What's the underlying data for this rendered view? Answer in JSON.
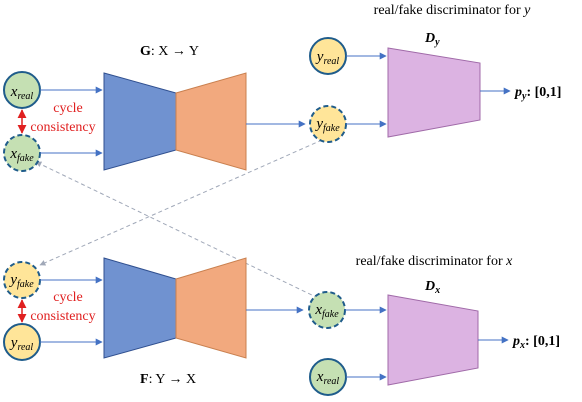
{
  "colors": {
    "encoder": "#7092d0",
    "decoder": "#f2a97e",
    "discriminator": "#dcb3e2",
    "node_green": "#c5e0b3",
    "node_yellow": "#ffe599",
    "node_stroke": "#1f5c8b",
    "arrow": "#4472c4",
    "cycle_text": "#e02020",
    "dashed_line": "#a0a8b8"
  },
  "top_generator": {
    "label_bold": "G",
    "label_rest": ": X → Y",
    "input_node": {
      "base": "x",
      "sub": "real"
    },
    "output_node": {
      "base": "y",
      "sub": "fake"
    }
  },
  "bottom_generator": {
    "label_bold": "F",
    "label_rest": ": Y → X",
    "input_node": {
      "base": "y",
      "sub": "fake"
    },
    "output_node": {
      "base": "x",
      "sub": "fake"
    }
  },
  "left_top_cycle": {
    "recon_node": {
      "base": "x",
      "sub": "fake"
    },
    "line1": "cycle",
    "line2": "consistency"
  },
  "left_bottom_cycle": {
    "real_node": {
      "base": "y",
      "sub": "real"
    },
    "line1": "cycle",
    "line2": "consistency"
  },
  "disc_y": {
    "caption_text": "real/fake discriminator for ",
    "caption_var": "y",
    "label_base": "D",
    "label_sub": "y",
    "real_node": {
      "base": "y",
      "sub": "real"
    },
    "output_base": "p",
    "output_sub": "y",
    "output_range": ": [0,1]"
  },
  "disc_x": {
    "caption_text": "real/fake discriminator for ",
    "caption_var": "x",
    "label_base": "D",
    "label_sub": "x",
    "real_node": {
      "base": "x",
      "sub": "real"
    },
    "output_base": "p",
    "output_sub": "x",
    "output_range": ": [0,1]"
  }
}
